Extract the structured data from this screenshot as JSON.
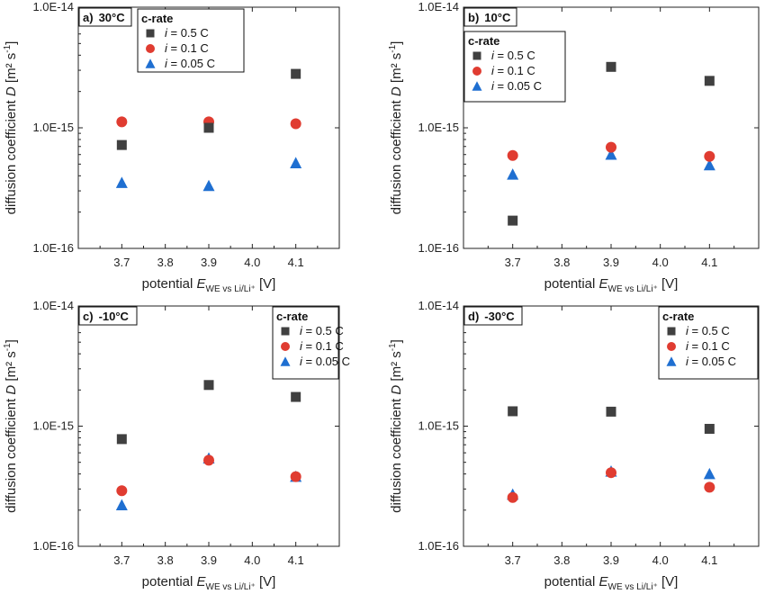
{
  "chart_data": [
    {
      "type": "scatter",
      "panel_label": "a)",
      "temperature": "30°C",
      "legend_title": "c-rate",
      "x": [
        3.7,
        3.9,
        4.1
      ],
      "xticks": [
        "3.7",
        "3.8",
        "3.9",
        "4.0",
        "4.1"
      ],
      "yticks": [
        "1.0E-16",
        "1.0E-15",
        "1.0E-14"
      ],
      "xlim": [
        3.6,
        4.2
      ],
      "ylim": [
        1e-16,
        1e-14
      ],
      "yscale": "log",
      "ylabel": {
        "main": "diffusion coefficient ",
        "italic": "D",
        "unit": " [m² s",
        "sup": "-1",
        "end": "]"
      },
      "xlabel": {
        "main": "potential ",
        "italic": "E",
        "sub": "WE vs Li/Li⁺",
        "end": "  [V]"
      },
      "legend_placement": "top-center",
      "series": [
        {
          "name_prefix": "i",
          "name_rest": " = 0.5 C",
          "marker": "square",
          "color": "#404040",
          "values": [
            7.2e-16,
            1e-15,
            2.8e-15
          ]
        },
        {
          "name_prefix": "i",
          "name_rest": " = 0.1 C",
          "marker": "circle",
          "color": "#e03c31",
          "values": [
            1.12e-15,
            1.12e-15,
            1.08e-15
          ]
        },
        {
          "name_prefix": "i",
          "name_rest": " = 0.05 C",
          "marker": "triangle",
          "color": "#1f6fd1",
          "values": [
            3.5e-16,
            3.3e-16,
            5.1e-16
          ]
        }
      ]
    },
    {
      "type": "scatter",
      "panel_label": "b)",
      "temperature": "10°C",
      "legend_title": "c-rate",
      "x": [
        3.7,
        3.9,
        4.1
      ],
      "xticks": [
        "3.7",
        "3.8",
        "3.9",
        "4.0",
        "4.1"
      ],
      "yticks": [
        "1.0E-16",
        "1.0E-15",
        "1.0E-14"
      ],
      "xlim": [
        3.6,
        4.2
      ],
      "ylim": [
        1e-16,
        1e-14
      ],
      "yscale": "log",
      "ylabel": {
        "main": "diffusion coefficient ",
        "italic": "D",
        "unit": " [m² s",
        "sup": "-1",
        "end": "]"
      },
      "xlabel": {
        "main": "potential ",
        "italic": "E",
        "sub": "WE vs Li/Li⁺",
        "end": "  [V]"
      },
      "legend_placement": "top-left",
      "series": [
        {
          "name_prefix": "i",
          "name_rest": " = 0.5 C",
          "marker": "square",
          "color": "#404040",
          "values": [
            1.7e-16,
            3.2e-15,
            2.45e-15
          ]
        },
        {
          "name_prefix": "i",
          "name_rest": " = 0.1 C",
          "marker": "circle",
          "color": "#e03c31",
          "values": [
            5.9e-16,
            6.9e-16,
            5.8e-16
          ]
        },
        {
          "name_prefix": "i",
          "name_rest": " = 0.05 C",
          "marker": "triangle",
          "color": "#1f6fd1",
          "values": [
            4.1e-16,
            6e-16,
            4.9e-16
          ]
        }
      ]
    },
    {
      "type": "scatter",
      "panel_label": "c)",
      "temperature": "-10°C",
      "legend_title": "c-rate",
      "x": [
        3.7,
        3.9,
        4.1
      ],
      "xticks": [
        "3.7",
        "3.8",
        "3.9",
        "4.0",
        "4.1"
      ],
      "yticks": [
        "1.0E-16",
        "1.0E-15",
        "1.0E-14"
      ],
      "xlim": [
        3.6,
        4.2
      ],
      "ylim": [
        1e-16,
        1e-14
      ],
      "yscale": "log",
      "ylabel": {
        "main": "diffusion coefficient ",
        "italic": "D",
        "unit": " [m² s",
        "sup": "-1",
        "end": "]"
      },
      "xlabel": {
        "main": "potential ",
        "italic": "E",
        "sub": "WE vs Li/Li⁺",
        "end": "  [V]"
      },
      "legend_placement": "top-right",
      "series": [
        {
          "name_prefix": "i",
          "name_rest": " = 0.5 C",
          "marker": "square",
          "color": "#404040",
          "values": [
            7.8e-16,
            2.2e-15,
            1.75e-15
          ]
        },
        {
          "name_prefix": "i",
          "name_rest": " = 0.1 C",
          "marker": "circle",
          "color": "#e03c31",
          "values": [
            2.9e-16,
            5.2e-16,
            3.8e-16
          ]
        },
        {
          "name_prefix": "i",
          "name_rest": " = 0.05 C",
          "marker": "triangle",
          "color": "#1f6fd1",
          "values": [
            2.2e-16,
            5.4e-16,
            3.8e-16
          ]
        }
      ]
    },
    {
      "type": "scatter",
      "panel_label": "d)",
      "temperature": "-30°C",
      "legend_title": "c-rate",
      "x": [
        3.7,
        3.9,
        4.1
      ],
      "xticks": [
        "3.7",
        "3.8",
        "3.9",
        "4.0",
        "4.1"
      ],
      "yticks": [
        "1.0E-16",
        "1.0E-15",
        "1.0E-14"
      ],
      "xlim": [
        3.6,
        4.2
      ],
      "ylim": [
        1e-16,
        1e-14
      ],
      "yscale": "log",
      "ylabel": {
        "main": "diffusion coefficient ",
        "italic": "D",
        "unit": " [m² s",
        "sup": "-1",
        "end": "]"
      },
      "xlabel": {
        "main": "potential ",
        "italic": "E",
        "sub": "WE vs Li/Li⁺",
        "end": "  [V]"
      },
      "legend_placement": "top-right",
      "series": [
        {
          "name_prefix": "i",
          "name_rest": " = 0.5 C",
          "marker": "square",
          "color": "#404040",
          "values": [
            1.33e-15,
            1.32e-15,
            9.5e-16
          ]
        },
        {
          "name_prefix": "i",
          "name_rest": " = 0.1 C",
          "marker": "circle",
          "color": "#e03c31",
          "values": [
            2.55e-16,
            4.1e-16,
            3.1e-16
          ]
        },
        {
          "name_prefix": "i",
          "name_rest": " = 0.05 C",
          "marker": "triangle",
          "color": "#1f6fd1",
          "values": [
            2.7e-16,
            4.2e-16,
            4e-16
          ]
        }
      ]
    }
  ]
}
